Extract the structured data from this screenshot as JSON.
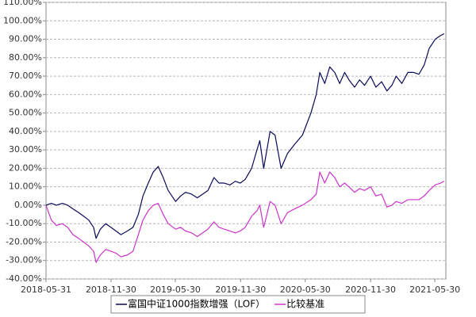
{
  "chart_data": {
    "type": "line",
    "x": [
      "2018-05-31",
      "2018-06-15",
      "2018-06-29",
      "2018-07-16",
      "2018-07-31",
      "2018-08-15",
      "2018-08-31",
      "2018-09-14",
      "2018-09-28",
      "2018-10-12",
      "2018-10-19",
      "2018-10-31",
      "2018-11-15",
      "2018-11-30",
      "2018-12-14",
      "2018-12-28",
      "2019-01-15",
      "2019-01-31",
      "2019-02-15",
      "2019-02-28",
      "2019-03-15",
      "2019-03-29",
      "2019-04-12",
      "2019-04-26",
      "2019-05-10",
      "2019-05-31",
      "2019-06-14",
      "2019-06-28",
      "2019-07-15",
      "2019-07-31",
      "2019-08-15",
      "2019-08-30",
      "2019-09-16",
      "2019-09-30",
      "2019-10-15",
      "2019-10-31",
      "2019-11-15",
      "2019-11-29",
      "2019-12-13",
      "2019-12-31",
      "2020-01-15",
      "2020-01-23",
      "2020-02-03",
      "2020-02-21",
      "2020-03-06",
      "2020-03-23",
      "2020-04-10",
      "2020-04-30",
      "2020-05-22",
      "2020-06-15",
      "2020-06-30",
      "2020-07-10",
      "2020-07-24",
      "2020-08-07",
      "2020-08-21",
      "2020-09-04",
      "2020-09-18",
      "2020-09-30",
      "2020-10-16",
      "2020-10-30",
      "2020-11-13",
      "2020-11-30",
      "2020-12-15",
      "2020-12-31",
      "2021-01-15",
      "2021-01-29",
      "2021-02-10",
      "2021-02-26",
      "2021-03-15",
      "2021-03-31",
      "2021-04-15",
      "2021-04-30",
      "2021-05-14",
      "2021-05-31",
      "2021-06-15",
      "2021-06-25"
    ],
    "series": [
      {
        "name": "富国中证1000指数增强（LOF）",
        "color": "#0a0a5a",
        "values": [
          0,
          1,
          0,
          1,
          0,
          -2,
          -4,
          -6,
          -8,
          -12,
          -18,
          -13,
          -10,
          -12,
          -14,
          -16,
          -14,
          -12,
          -5,
          5,
          12,
          18,
          21,
          15,
          8,
          2,
          5,
          7,
          6,
          4,
          6,
          8,
          15,
          12,
          12,
          11,
          13,
          12,
          14,
          20,
          30,
          35,
          20,
          40,
          38,
          20,
          28,
          33,
          38,
          50,
          60,
          72,
          66,
          75,
          72,
          66,
          72,
          68,
          64,
          68,
          65,
          70,
          64,
          67,
          62,
          65,
          70,
          66,
          72,
          72,
          71,
          76,
          85,
          90,
          92,
          93
        ]
      },
      {
        "name": "比较基准",
        "color": "#cc33cc",
        "values": [
          0,
          -8,
          -11,
          -10,
          -12,
          -16,
          -18,
          -20,
          -22,
          -25,
          -31,
          -27,
          -24,
          -25,
          -26,
          -28,
          -27,
          -25,
          -16,
          -8,
          -3,
          0,
          1,
          -5,
          -10,
          -13,
          -12,
          -14,
          -15,
          -17,
          -15,
          -13,
          -9,
          -12,
          -13,
          -14,
          -15,
          -14,
          -12,
          -6,
          -3,
          0,
          -12,
          2,
          0,
          -10,
          -4,
          -2,
          0,
          3,
          6,
          18,
          12,
          18,
          15,
          10,
          12,
          10,
          7,
          9,
          8,
          10,
          5,
          6,
          -1,
          0,
          2,
          1,
          3,
          3,
          3,
          5,
          8,
          11,
          12,
          13
        ]
      }
    ],
    "xlim": [
      "2018-05-31",
      "2021-06-30"
    ],
    "xticks": [
      "2018-05-31",
      "2018-11-30",
      "2019-05-30",
      "2019-11-30",
      "2020-05-30",
      "2020-11-30",
      "2021-05-30"
    ],
    "ylim": [
      -40,
      110
    ],
    "yticks": [
      {
        "value": -40,
        "label": "-40.00%"
      },
      {
        "value": -30,
        "label": "-30.00%"
      },
      {
        "value": -20,
        "label": "-20.00%"
      },
      {
        "value": -10,
        "label": "-10.00%"
      },
      {
        "value": 0,
        "label": "0.00%"
      },
      {
        "value": 10,
        "label": "10.00%"
      },
      {
        "value": 20,
        "label": "20.00%"
      },
      {
        "value": 30,
        "label": "30.00%"
      },
      {
        "value": 40,
        "label": "40.00%"
      },
      {
        "value": 50,
        "label": "50.00%"
      },
      {
        "value": 60,
        "label": "60.00%"
      },
      {
        "value": 70,
        "label": "70.00%"
      },
      {
        "value": 80,
        "label": "80.00%"
      },
      {
        "value": 90,
        "label": "90.00%"
      },
      {
        "value": 100,
        "label": "100.00%"
      },
      {
        "value": 110,
        "label": "110.00%"
      }
    ],
    "grid": true
  }
}
